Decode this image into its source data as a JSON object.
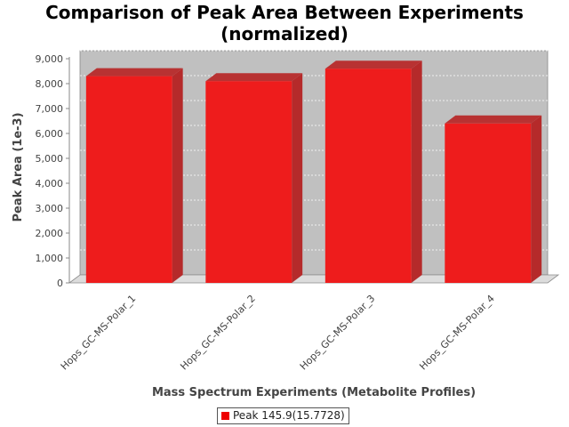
{
  "chart_data": {
    "type": "bar",
    "title_line1": "Comparison of Peak Area Between Experiments",
    "title_line2": "(normalized)",
    "xlabel": "Mass Spectrum Experiments (Metabolite Profiles)",
    "ylabel": "Peak Area (1e-3)",
    "categories": [
      "Hops_GC-MS-Polar_1",
      "Hops_GC-MS-Polar_2",
      "Hops_GC-MS-Polar_3",
      "Hops_GC-MS-Polar_4"
    ],
    "series": [
      {
        "name": "Peak 145.9(15.7728)",
        "values": [
          8300,
          8100,
          8600,
          6400
        ]
      }
    ],
    "ylim": [
      0,
      9000
    ],
    "yticks": [
      "0",
      "1,000",
      "2,000",
      "3,000",
      "4,000",
      "5,000",
      "6,000",
      "7,000",
      "8,000",
      "9,000"
    ],
    "grid": true,
    "legend_position": "bottom",
    "colors": {
      "bar": "#ee1c1c",
      "plot_bg": "#c0c0c0"
    }
  }
}
